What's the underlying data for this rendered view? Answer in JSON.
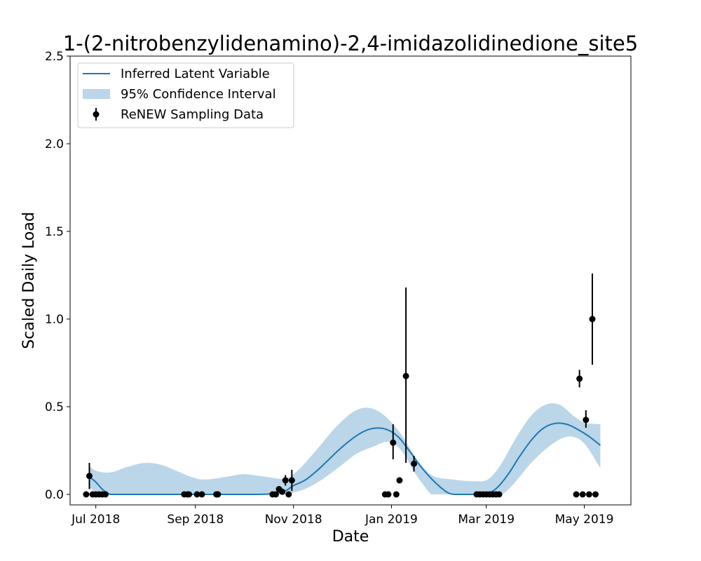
{
  "chart_data": {
    "type": "line",
    "title": "1-(2-nitrobenzylidenamino)-2,4-imidazolidinedione_site5",
    "xlabel": "Date",
    "ylabel": "Scaled Daily Load",
    "xlim": [
      "2018-06-15",
      "2019-05-30"
    ],
    "ylim": [
      -0.06,
      2.5
    ],
    "x_ticks": [
      {
        "date": "2018-07-01",
        "label": "Jul 2018"
      },
      {
        "date": "2018-09-01",
        "label": "Sep 2018"
      },
      {
        "date": "2018-11-01",
        "label": "Nov 2018"
      },
      {
        "date": "2019-01-01",
        "label": "Jan 2019"
      },
      {
        "date": "2019-03-01",
        "label": "Mar 2019"
      },
      {
        "date": "2019-05-01",
        "label": "May 2019"
      }
    ],
    "y_ticks": [
      {
        "value": 0.0,
        "label": "0.0"
      },
      {
        "value": 0.5,
        "label": "0.5"
      },
      {
        "value": 1.0,
        "label": "1.0"
      },
      {
        "value": 1.5,
        "label": "1.5"
      },
      {
        "value": 2.0,
        "label": "2.0"
      },
      {
        "value": 2.5,
        "label": "2.5"
      }
    ],
    "legend": {
      "placement": "upper-left",
      "entries": [
        "Inferred Latent Variable",
        "95% Confidence Interval",
        "ReNEW Sampling Data"
      ]
    },
    "colors": {
      "line": "#1f77b4",
      "band": "#1f77b4",
      "points": "#000000"
    },
    "series": [
      {
        "name": "Inferred Latent Variable",
        "kind": "line",
        "points": [
          [
            "2018-06-27",
            0.1
          ],
          [
            "2018-07-01",
            0.07
          ],
          [
            "2018-07-05",
            0.03
          ],
          [
            "2018-07-10",
            0.0
          ],
          [
            "2018-07-20",
            0.0
          ],
          [
            "2018-08-10",
            0.0
          ],
          [
            "2018-09-01",
            0.0
          ],
          [
            "2018-09-20",
            0.0
          ],
          [
            "2018-10-10",
            0.0
          ],
          [
            "2018-10-20",
            0.005
          ],
          [
            "2018-10-27",
            0.02
          ],
          [
            "2018-11-01",
            0.05
          ],
          [
            "2018-11-08",
            0.08
          ],
          [
            "2018-11-15",
            0.13
          ],
          [
            "2018-11-22",
            0.19
          ],
          [
            "2018-11-30",
            0.26
          ],
          [
            "2018-12-08",
            0.32
          ],
          [
            "2018-12-15",
            0.36
          ],
          [
            "2018-12-22",
            0.378
          ],
          [
            "2018-12-29",
            0.37
          ],
          [
            "2019-01-05",
            0.33
          ],
          [
            "2019-01-12",
            0.25
          ],
          [
            "2019-01-20",
            0.15
          ],
          [
            "2019-01-28",
            0.07
          ],
          [
            "2019-02-05",
            0.01
          ],
          [
            "2019-02-10",
            0.0
          ],
          [
            "2019-02-26",
            0.0
          ],
          [
            "2019-03-02",
            0.005
          ],
          [
            "2019-03-08",
            0.04
          ],
          [
            "2019-03-15",
            0.12
          ],
          [
            "2019-03-22",
            0.22
          ],
          [
            "2019-03-30",
            0.32
          ],
          [
            "2019-04-06",
            0.38
          ],
          [
            "2019-04-13",
            0.405
          ],
          [
            "2019-04-20",
            0.4
          ],
          [
            "2019-04-27",
            0.37
          ],
          [
            "2019-05-04",
            0.33
          ],
          [
            "2019-05-11",
            0.28
          ]
        ]
      },
      {
        "name": "95% Confidence Interval",
        "kind": "band",
        "upper": [
          [
            "2018-06-27",
            0.16
          ],
          [
            "2018-07-01",
            0.135
          ],
          [
            "2018-07-10",
            0.125
          ],
          [
            "2018-07-20",
            0.155
          ],
          [
            "2018-08-01",
            0.18
          ],
          [
            "2018-08-12",
            0.165
          ],
          [
            "2018-08-25",
            0.115
          ],
          [
            "2018-09-05",
            0.085
          ],
          [
            "2018-09-20",
            0.1
          ],
          [
            "2018-10-01",
            0.115
          ],
          [
            "2018-10-15",
            0.1
          ],
          [
            "2018-10-27",
            0.09
          ],
          [
            "2018-11-03",
            0.13
          ],
          [
            "2018-11-15",
            0.25
          ],
          [
            "2018-11-28",
            0.39
          ],
          [
            "2018-12-10",
            0.48
          ],
          [
            "2018-12-20",
            0.49
          ],
          [
            "2018-12-30",
            0.43
          ],
          [
            "2019-01-08",
            0.33
          ],
          [
            "2019-01-16",
            0.21
          ],
          [
            "2019-01-26",
            0.11
          ],
          [
            "2019-02-08",
            0.085
          ],
          [
            "2019-02-22",
            0.075
          ],
          [
            "2019-03-02",
            0.085
          ],
          [
            "2019-03-10",
            0.17
          ],
          [
            "2019-03-20",
            0.33
          ],
          [
            "2019-03-30",
            0.46
          ],
          [
            "2019-04-08",
            0.515
          ],
          [
            "2019-04-16",
            0.51
          ],
          [
            "2019-04-24",
            0.45
          ],
          [
            "2019-05-01",
            0.41
          ],
          [
            "2019-05-11",
            0.4
          ]
        ],
        "lower": [
          [
            "2018-06-27",
            0.04
          ],
          [
            "2018-07-03",
            0.0
          ],
          [
            "2018-10-30",
            0.0
          ],
          [
            "2018-11-01",
            0.01
          ],
          [
            "2018-11-08",
            0.03
          ],
          [
            "2018-11-18",
            0.08
          ],
          [
            "2018-11-30",
            0.16
          ],
          [
            "2018-12-10",
            0.23
          ],
          [
            "2018-12-20",
            0.27
          ],
          [
            "2018-12-31",
            0.3
          ],
          [
            "2019-01-08",
            0.24
          ],
          [
            "2019-01-15",
            0.13
          ],
          [
            "2019-01-22",
            0.04
          ],
          [
            "2019-01-26",
            0.0
          ],
          [
            "2019-03-10",
            0.0
          ],
          [
            "2019-03-18",
            0.06
          ],
          [
            "2019-03-28",
            0.17
          ],
          [
            "2019-04-06",
            0.25
          ],
          [
            "2019-04-15",
            0.31
          ],
          [
            "2019-04-23",
            0.33
          ],
          [
            "2019-05-01",
            0.29
          ],
          [
            "2019-05-11",
            0.15
          ]
        ]
      },
      {
        "name": "ReNEW Sampling Data",
        "kind": "errorbar",
        "points": [
          {
            "date": "2018-06-25",
            "y": 0.0
          },
          {
            "date": "2018-06-27",
            "y": 0.105,
            "ylo": 0.03,
            "yhi": 0.18
          },
          {
            "date": "2018-06-29",
            "y": 0.0
          },
          {
            "date": "2018-07-01",
            "y": 0.0
          },
          {
            "date": "2018-07-03",
            "y": 0.0
          },
          {
            "date": "2018-07-05",
            "y": 0.0
          },
          {
            "date": "2018-07-07",
            "y": 0.0
          },
          {
            "date": "2018-08-25",
            "y": 0.0
          },
          {
            "date": "2018-08-27",
            "y": 0.0
          },
          {
            "date": "2018-08-28",
            "y": 0.0
          },
          {
            "date": "2018-09-02",
            "y": 0.0
          },
          {
            "date": "2018-09-05",
            "y": 0.0
          },
          {
            "date": "2018-09-14",
            "y": 0.0
          },
          {
            "date": "2018-09-15",
            "y": 0.0
          },
          {
            "date": "2018-10-19",
            "y": 0.0
          },
          {
            "date": "2018-10-21",
            "y": 0.0
          },
          {
            "date": "2018-10-23",
            "y": 0.03
          },
          {
            "date": "2018-10-25",
            "y": 0.015
          },
          {
            "date": "2018-10-27",
            "y": 0.08,
            "ylo": 0.05,
            "yhi": 0.11
          },
          {
            "date": "2018-10-29",
            "y": 0.0
          },
          {
            "date": "2018-10-31",
            "y": 0.08,
            "ylo": 0.02,
            "yhi": 0.14
          },
          {
            "date": "2018-12-28",
            "y": 0.0
          },
          {
            "date": "2018-12-30",
            "y": 0.0
          },
          {
            "date": "2019-01-02",
            "y": 0.295,
            "ylo": 0.2,
            "yhi": 0.4
          },
          {
            "date": "2019-01-04",
            "y": 0.0
          },
          {
            "date": "2019-01-06",
            "y": 0.08
          },
          {
            "date": "2019-01-10",
            "y": 0.675,
            "ylo": 0.18,
            "yhi": 1.18
          },
          {
            "date": "2019-01-15",
            "y": 0.175,
            "ylo": 0.13,
            "yhi": 0.22
          },
          {
            "date": "2019-02-23",
            "y": 0.0
          },
          {
            "date": "2019-02-25",
            "y": 0.0
          },
          {
            "date": "2019-02-27",
            "y": 0.0
          },
          {
            "date": "2019-03-01",
            "y": 0.0
          },
          {
            "date": "2019-03-03",
            "y": 0.0
          },
          {
            "date": "2019-03-05",
            "y": 0.0
          },
          {
            "date": "2019-03-07",
            "y": 0.0
          },
          {
            "date": "2019-03-09",
            "y": 0.0
          },
          {
            "date": "2019-04-26",
            "y": 0.0
          },
          {
            "date": "2019-04-28",
            "y": 0.66,
            "ylo": 0.61,
            "yhi": 0.71
          },
          {
            "date": "2019-04-30",
            "y": 0.0
          },
          {
            "date": "2019-05-02",
            "y": 0.425,
            "ylo": 0.38,
            "yhi": 0.48
          },
          {
            "date": "2019-05-04",
            "y": 0.0
          },
          {
            "date": "2019-05-06",
            "y": 1.0,
            "ylo": 0.74,
            "yhi": 1.26
          },
          {
            "date": "2019-05-08",
            "y": 0.0
          }
        ]
      }
    ]
  }
}
